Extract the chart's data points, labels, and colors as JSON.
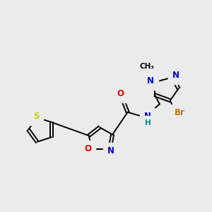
{
  "background_color": "#ebebeb",
  "bond_color": "#000000",
  "atom_colors": {
    "O": "#ff0000",
    "N": "#0000cc",
    "S": "#cccc00",
    "Br": "#b87820",
    "H": "#008888",
    "C": "#000000"
  },
  "font_size": 8.5,
  "lw": 1.4
}
